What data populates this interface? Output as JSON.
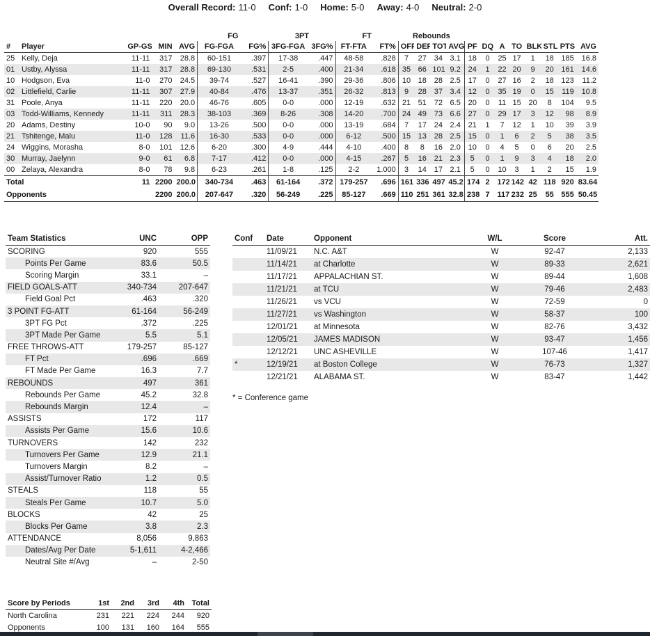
{
  "record_bar": {
    "items": [
      {
        "label": "Overall Record:",
        "value": "11-0"
      },
      {
        "label": "Conf:",
        "value": "1-0"
      },
      {
        "label": "Home:",
        "value": "5-0"
      },
      {
        "label": "Away:",
        "value": "4-0"
      },
      {
        "label": "Neutral:",
        "value": "2-0"
      }
    ]
  },
  "player_table": {
    "group_headers": [
      {
        "label": "",
        "span": 5
      },
      {
        "label": "FG",
        "span": 2
      },
      {
        "label": "3PT",
        "span": 2
      },
      {
        "label": "FT",
        "span": 2
      },
      {
        "label": "Rebounds",
        "span": 4
      },
      {
        "label": "",
        "span": 8
      }
    ],
    "columns": [
      "#",
      "Player",
      "GP-GS",
      "MIN",
      "AVG",
      "FG-FGA",
      "FG%",
      "3FG-FGA",
      "3FG%",
      "FT-FTA",
      "FT%",
      "OFF",
      "DEF",
      "TOT",
      "AVG",
      "PF",
      "DQ",
      "A",
      "TO",
      "BLK",
      "STL",
      "PTS",
      "AVG"
    ],
    "rows": [
      [
        "25",
        "Kelly, Deja",
        "11-11",
        "317",
        "28.8",
        "60-151",
        ".397",
        "17-38",
        ".447",
        "48-58",
        ".828",
        "7",
        "27",
        "34",
        "3.1",
        "18",
        "0",
        "25",
        "17",
        "1",
        "18",
        "185",
        "16.8"
      ],
      [
        "01",
        "Ustby, Alyssa",
        "11-11",
        "317",
        "28.8",
        "69-130",
        ".531",
        "2-5",
        ".400",
        "21-34",
        ".618",
        "35",
        "66",
        "101",
        "9.2",
        "24",
        "1",
        "22",
        "20",
        "9",
        "20",
        "161",
        "14.6"
      ],
      [
        "10",
        "Hodgson, Eva",
        "11-0",
        "270",
        "24.5",
        "39-74",
        ".527",
        "16-41",
        ".390",
        "29-36",
        ".806",
        "10",
        "18",
        "28",
        "2.5",
        "17",
        "0",
        "27",
        "16",
        "2",
        "18",
        "123",
        "11.2"
      ],
      [
        "02",
        "Littlefield, Carlie",
        "11-11",
        "307",
        "27.9",
        "40-84",
        ".476",
        "13-37",
        ".351",
        "26-32",
        ".813",
        "9",
        "28",
        "37",
        "3.4",
        "12",
        "0",
        "35",
        "19",
        "0",
        "15",
        "119",
        "10.8"
      ],
      [
        "31",
        "Poole, Anya",
        "11-11",
        "220",
        "20.0",
        "46-76",
        ".605",
        "0-0",
        ".000",
        "12-19",
        ".632",
        "21",
        "51",
        "72",
        "6.5",
        "20",
        "0",
        "11",
        "15",
        "20",
        "8",
        "104",
        "9.5"
      ],
      [
        "03",
        "Todd-Williams, Kennedy",
        "11-11",
        "311",
        "28.3",
        "38-103",
        ".369",
        "8-26",
        ".308",
        "14-20",
        ".700",
        "24",
        "49",
        "73",
        "6.6",
        "27",
        "0",
        "29",
        "17",
        "3",
        "12",
        "98",
        "8.9"
      ],
      [
        "20",
        "Adams, Destiny",
        "10-0",
        "90",
        "9.0",
        "13-26",
        ".500",
        "0-0",
        ".000",
        "13-19",
        ".684",
        "7",
        "17",
        "24",
        "2.4",
        "21",
        "1",
        "7",
        "12",
        "1",
        "10",
        "39",
        "3.9"
      ],
      [
        "21",
        "Tshitenge, Malu",
        "11-0",
        "128",
        "11.6",
        "16-30",
        ".533",
        "0-0",
        ".000",
        "6-12",
        ".500",
        "15",
        "13",
        "28",
        "2.5",
        "15",
        "0",
        "1",
        "6",
        "2",
        "5",
        "38",
        "3.5"
      ],
      [
        "24",
        "Wiggins, Morasha",
        "8-0",
        "101",
        "12.6",
        "6-20",
        ".300",
        "4-9",
        ".444",
        "4-10",
        ".400",
        "8",
        "8",
        "16",
        "2.0",
        "10",
        "0",
        "4",
        "5",
        "0",
        "6",
        "20",
        "2.5"
      ],
      [
        "30",
        "Murray, Jaelynn",
        "9-0",
        "61",
        "6.8",
        "7-17",
        ".412",
        "0-0",
        ".000",
        "4-15",
        ".267",
        "5",
        "16",
        "21",
        "2.3",
        "5",
        "0",
        "1",
        "9",
        "3",
        "4",
        "18",
        "2.0"
      ],
      [
        "00",
        "Zelaya, Alexandra",
        "8-0",
        "78",
        "9.8",
        "6-23",
        ".261",
        "1-8",
        ".125",
        "2-2",
        "1.000",
        "3",
        "14",
        "17",
        "2.1",
        "5",
        "0",
        "10",
        "3",
        "1",
        "2",
        "15",
        "1.9"
      ]
    ],
    "total_row": {
      "label": "Total",
      "values": [
        "11",
        "2200",
        "200.0",
        "340-734",
        ".463",
        "61-164",
        ".372",
        "179-257",
        ".696",
        "161",
        "336",
        "497",
        "45.2",
        "174",
        "2",
        "172",
        "142",
        "42",
        "118",
        "920",
        "83.64"
      ]
    },
    "opponents_row": {
      "label": "Opponents",
      "values": [
        "",
        "2200",
        "200.0",
        "207-647",
        ".320",
        "56-249",
        ".225",
        "85-127",
        ".669",
        "110",
        "251",
        "361",
        "32.8",
        "238",
        "7",
        "117",
        "232",
        "25",
        "55",
        "555",
        "50.45"
      ]
    }
  },
  "team_stats": {
    "headers": [
      "Team Statistics",
      "UNC",
      "OPP"
    ],
    "rows": [
      {
        "label": "SCORING",
        "sub": false,
        "unc": "920",
        "opp": "555"
      },
      {
        "label": "Points Per Game",
        "sub": true,
        "unc": "83.6",
        "opp": "50.5"
      },
      {
        "label": "Scoring Margin",
        "sub": true,
        "unc": "33.1",
        "opp": "–"
      },
      {
        "label": "FIELD GOALS-ATT",
        "sub": false,
        "unc": "340-734",
        "opp": "207-647"
      },
      {
        "label": "Field Goal Pct",
        "sub": true,
        "unc": ".463",
        "opp": ".320"
      },
      {
        "label": "3 POINT FG-ATT",
        "sub": false,
        "unc": "61-164",
        "opp": "56-249"
      },
      {
        "label": "3PT FG Pct",
        "sub": true,
        "unc": ".372",
        "opp": ".225"
      },
      {
        "label": "3PT Made Per Game",
        "sub": true,
        "unc": "5.5",
        "opp": "5.1"
      },
      {
        "label": "FREE THROWS-ATT",
        "sub": false,
        "unc": "179-257",
        "opp": "85-127"
      },
      {
        "label": "FT Pct",
        "sub": true,
        "unc": ".696",
        "opp": ".669"
      },
      {
        "label": "FT Made Per Game",
        "sub": true,
        "unc": "16.3",
        "opp": "7.7"
      },
      {
        "label": "REBOUNDS",
        "sub": false,
        "unc": "497",
        "opp": "361"
      },
      {
        "label": "Rebounds Per Game",
        "sub": true,
        "unc": "45.2",
        "opp": "32.8"
      },
      {
        "label": "Rebounds Margin",
        "sub": true,
        "unc": "12.4",
        "opp": "–"
      },
      {
        "label": "ASSISTS",
        "sub": false,
        "unc": "172",
        "opp": "117"
      },
      {
        "label": "Assists Per Game",
        "sub": true,
        "unc": "15.6",
        "opp": "10.6"
      },
      {
        "label": "TURNOVERS",
        "sub": false,
        "unc": "142",
        "opp": "232"
      },
      {
        "label": "Turnovers Per Game",
        "sub": true,
        "unc": "12.9",
        "opp": "21.1"
      },
      {
        "label": "Turnovers Margin",
        "sub": true,
        "unc": "8.2",
        "opp": "–"
      },
      {
        "label": "Assist/Turnover Ratio",
        "sub": true,
        "unc": "1.2",
        "opp": "0.5"
      },
      {
        "label": "STEALS",
        "sub": false,
        "unc": "118",
        "opp": "55"
      },
      {
        "label": "Steals Per Game",
        "sub": true,
        "unc": "10.7",
        "opp": "5.0"
      },
      {
        "label": "BLOCKS",
        "sub": false,
        "unc": "42",
        "opp": "25"
      },
      {
        "label": "Blocks Per Game",
        "sub": true,
        "unc": "3.8",
        "opp": "2.3"
      },
      {
        "label": "ATTENDANCE",
        "sub": false,
        "unc": "8,056",
        "opp": "9,863"
      },
      {
        "label": "Dates/Avg Per Date",
        "sub": true,
        "unc": "5-1,611",
        "opp": "4-2,466"
      },
      {
        "label": "Neutral Site #/Avg",
        "sub": true,
        "unc": "–",
        "opp": "2-50"
      }
    ]
  },
  "games": {
    "headers": [
      "Conf",
      "Date",
      "Opponent",
      "W/L",
      "Score",
      "Att."
    ],
    "rows": [
      {
        "conf": "",
        "date": "11/09/21",
        "opponent": "N.C. A&T",
        "wl": "W",
        "score": "92-47",
        "att": "2,133"
      },
      {
        "conf": "",
        "date": "11/14/21",
        "opponent": "at Charlotte",
        "wl": "W",
        "score": "89-33",
        "att": "2,621"
      },
      {
        "conf": "",
        "date": "11/17/21",
        "opponent": "APPALACHIAN ST.",
        "wl": "W",
        "score": "89-44",
        "att": "1,608"
      },
      {
        "conf": "",
        "date": "11/21/21",
        "opponent": "at TCU",
        "wl": "W",
        "score": "79-46",
        "att": "2,483"
      },
      {
        "conf": "",
        "date": "11/26/21",
        "opponent": "vs VCU",
        "wl": "W",
        "score": "72-59",
        "att": "0"
      },
      {
        "conf": "",
        "date": "11/27/21",
        "opponent": "vs Washington",
        "wl": "W",
        "score": "58-37",
        "att": "100"
      },
      {
        "conf": "",
        "date": "12/01/21",
        "opponent": "at Minnesota",
        "wl": "W",
        "score": "82-76",
        "att": "3,432"
      },
      {
        "conf": "",
        "date": "12/05/21",
        "opponent": "JAMES MADISON",
        "wl": "W",
        "score": "93-47",
        "att": "1,456"
      },
      {
        "conf": "",
        "date": "12/12/21",
        "opponent": "UNC ASHEVILLE",
        "wl": "W",
        "score": "107-46",
        "att": "1,417"
      },
      {
        "conf": "*",
        "date": "12/19/21",
        "opponent": "at Boston College",
        "wl": "W",
        "score": "76-73",
        "att": "1,327"
      },
      {
        "conf": "",
        "date": "12/21/21",
        "opponent": "ALABAMA ST.",
        "wl": "W",
        "score": "83-47",
        "att": "1,442"
      }
    ],
    "note": "* = Conference game"
  },
  "score_by_periods": {
    "headers": [
      "Score by Periods",
      "1st",
      "2nd",
      "3rd",
      "4th",
      "Total"
    ],
    "rows": [
      {
        "team": "North Carolina",
        "values": [
          "231",
          "221",
          "224",
          "244",
          "920"
        ]
      },
      {
        "team": "Opponents",
        "values": [
          "100",
          "131",
          "160",
          "164",
          "555"
        ]
      }
    ]
  },
  "colors": {
    "stripe": "#e8e8e8",
    "text": "#1a1a1a",
    "rule": "#3c3c3c",
    "bottom_bar": "#20262e"
  }
}
